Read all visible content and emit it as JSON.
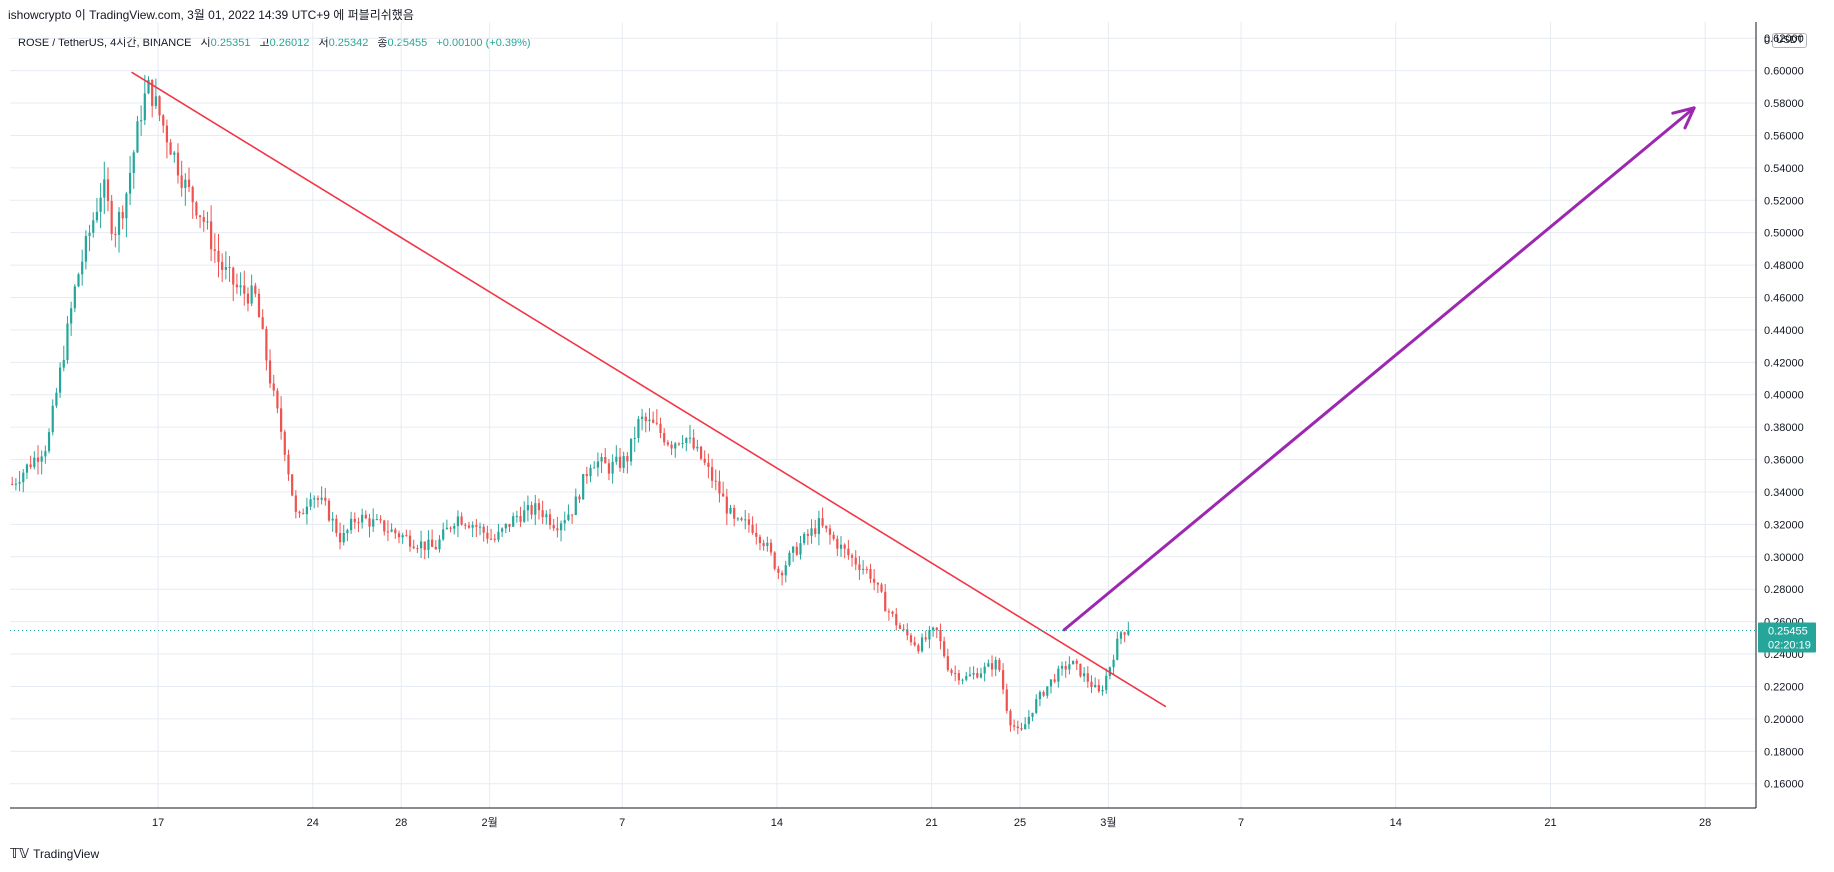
{
  "attribution": "ishowcrypto 이 TradingView.com, 3월 01, 2022 14:39 UTC+9 에 퍼블리쉬했음",
  "legend": {
    "symbol": "ROSE / TetherUS, 4시간, BINANCE",
    "open_label": "시",
    "open": "0.25351",
    "high_label": "고",
    "high": "0.26012",
    "low_label": "저",
    "low": "0.25342",
    "close_label": "종",
    "close": "0.25455",
    "change": "+0.00100 (+0.39%)"
  },
  "price_axis_unit": "USDT",
  "price_badge": {
    "price": "0.25455",
    "countdown": "02:20:19"
  },
  "footer_brand": "TradingView",
  "colors": {
    "up": "#26a69a",
    "down": "#ef5350",
    "trendline": "#f23645",
    "arrow": "#9c27b0",
    "grid": "#e6ecf2"
  },
  "chart_data": {
    "type": "candlestick",
    "title": "ROSE / TetherUS, 4시간, BINANCE",
    "ylim": [
      0.145,
      0.63
    ],
    "y_ticks": [
      "0.16000",
      "0.18000",
      "0.20000",
      "0.22000",
      "0.24000",
      "0.26000",
      "0.28000",
      "0.30000",
      "0.32000",
      "0.34000",
      "0.36000",
      "0.38000",
      "0.40000",
      "0.42000",
      "0.44000",
      "0.46000",
      "0.48000",
      "0.50000",
      "0.52000",
      "0.54000",
      "0.56000",
      "0.58000",
      "0.60000",
      "0.62000"
    ],
    "x_ticks": [
      {
        "label": "17",
        "day": 17
      },
      {
        "label": "24",
        "day": 24
      },
      {
        "label": "28",
        "day": 28
      },
      {
        "label": "2월",
        "day": 32
      },
      {
        "label": "7",
        "day": 38
      },
      {
        "label": "14",
        "day": 45
      },
      {
        "label": "21",
        "day": 52
      },
      {
        "label": "25",
        "day": 56
      },
      {
        "label": "3월",
        "day": 60
      },
      {
        "label": "7",
        "day": 66
      },
      {
        "label": "14",
        "day": 73
      },
      {
        "label": "21",
        "day": 80
      },
      {
        "label": "28",
        "day": 87
      }
    ],
    "xlim_day": [
      10.3,
      89.3
    ],
    "anchors": [
      [
        10.4,
        0.345
      ],
      [
        12.0,
        0.37
      ],
      [
        13.3,
        0.47
      ],
      [
        14.5,
        0.53
      ],
      [
        15.0,
        0.5
      ],
      [
        15.5,
        0.52
      ],
      [
        16.3,
        0.58
      ],
      [
        16.6,
        0.59
      ],
      [
        17.4,
        0.56
      ],
      [
        18.2,
        0.53
      ],
      [
        19.0,
        0.51
      ],
      [
        19.8,
        0.48
      ],
      [
        20.6,
        0.465
      ],
      [
        21.4,
        0.46
      ],
      [
        22.2,
        0.4
      ],
      [
        22.7,
        0.37
      ],
      [
        23.3,
        0.32
      ],
      [
        23.9,
        0.34
      ],
      [
        24.6,
        0.33
      ],
      [
        25.3,
        0.31
      ],
      [
        26.0,
        0.325
      ],
      [
        26.9,
        0.32
      ],
      [
        27.7,
        0.315
      ],
      [
        28.5,
        0.31
      ],
      [
        29.5,
        0.305
      ],
      [
        30.5,
        0.325
      ],
      [
        31.3,
        0.32
      ],
      [
        32.2,
        0.31
      ],
      [
        33.2,
        0.325
      ],
      [
        34.2,
        0.33
      ],
      [
        35.0,
        0.32
      ],
      [
        35.8,
        0.33
      ],
      [
        36.6,
        0.36
      ],
      [
        37.4,
        0.355
      ],
      [
        38.2,
        0.36
      ],
      [
        38.8,
        0.385
      ],
      [
        39.5,
        0.38
      ],
      [
        40.2,
        0.37
      ],
      [
        40.8,
        0.375
      ],
      [
        41.6,
        0.36
      ],
      [
        42.4,
        0.34
      ],
      [
        43.1,
        0.32
      ],
      [
        43.8,
        0.32
      ],
      [
        44.4,
        0.31
      ],
      [
        45.1,
        0.29
      ],
      [
        45.6,
        0.3
      ],
      [
        46.2,
        0.31
      ],
      [
        46.9,
        0.32
      ],
      [
        47.6,
        0.31
      ],
      [
        48.3,
        0.3
      ],
      [
        49.2,
        0.29
      ],
      [
        49.9,
        0.27
      ],
      [
        50.6,
        0.255
      ],
      [
        51.4,
        0.245
      ],
      [
        52.2,
        0.255
      ],
      [
        52.8,
        0.23
      ],
      [
        53.5,
        0.225
      ],
      [
        54.3,
        0.23
      ],
      [
        55.0,
        0.235
      ],
      [
        55.5,
        0.2
      ],
      [
        56.0,
        0.19
      ],
      [
        56.7,
        0.21
      ],
      [
        57.5,
        0.225
      ],
      [
        58.3,
        0.235
      ],
      [
        59.0,
        0.225
      ],
      [
        59.6,
        0.215
      ],
      [
        60.0,
        0.23
      ],
      [
        60.6,
        0.255
      ],
      [
        60.9,
        0.2545
      ]
    ],
    "last_close": 0.25455,
    "trendline": {
      "from": {
        "day": 15.8,
        "price": 0.599
      },
      "to": {
        "day": 62.6,
        "price": 0.2075
      }
    },
    "arrow": {
      "from": {
        "day": 58.0,
        "price": 0.255
      },
      "to": {
        "day": 86.5,
        "price": 0.577
      }
    }
  }
}
